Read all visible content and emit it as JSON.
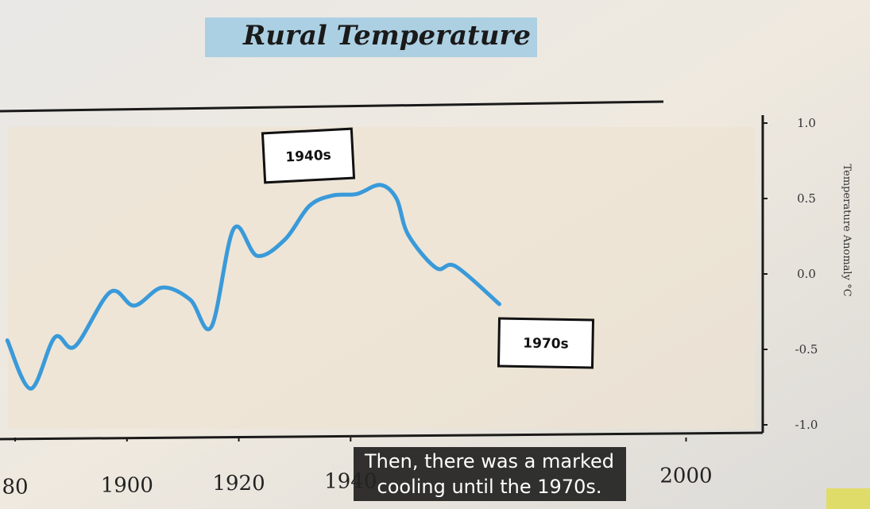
{
  "chart_data": {
    "type": "line",
    "title": "Rural Temperature",
    "ylabel": "Temperature Anomaly °C",
    "x": [
      1878.6,
      1882.8,
      1887.1,
      1890.7,
      1897,
      1901.3,
      1906.3,
      1911.3,
      1915.1,
      1919.1,
      1923.3,
      1928.3,
      1932.6,
      1936.8,
      1941.1,
      1945.3,
      1948.2,
      1950.3,
      1955.3,
      1958.8,
      1966.6
    ],
    "series": [
      {
        "color": "#3a9ad9",
        "values": [
          -0.44,
          -0.76,
          -0.42,
          -0.48,
          -0.12,
          -0.21,
          -0.09,
          -0.17,
          -0.35,
          0.3,
          0.12,
          0.23,
          0.45,
          0.52,
          0.53,
          0.59,
          0.5,
          0.26,
          0.04,
          0.05,
          -0.2
        ]
      }
    ],
    "xlim": [
      1878,
      2014
    ],
    "xticks": [
      {
        "value": 1880,
        "label": "80"
      },
      1900,
      1920,
      1940,
      2000
    ],
    "ylim": [
      -1,
      1
    ],
    "yticks": [
      {
        "value": 1,
        "label": "1.0"
      },
      {
        "value": 0.5,
        "label": "0.5"
      },
      {
        "value": 0,
        "label": "0.0"
      },
      {
        "value": -0.5,
        "label": "-0.5"
      },
      {
        "value": -1,
        "label": "-1.0"
      }
    ],
    "annotations": [
      "1940s",
      "1970s"
    ]
  },
  "caption": [
    "Then, there was a marked",
    "cooling until the 1970s."
  ]
}
